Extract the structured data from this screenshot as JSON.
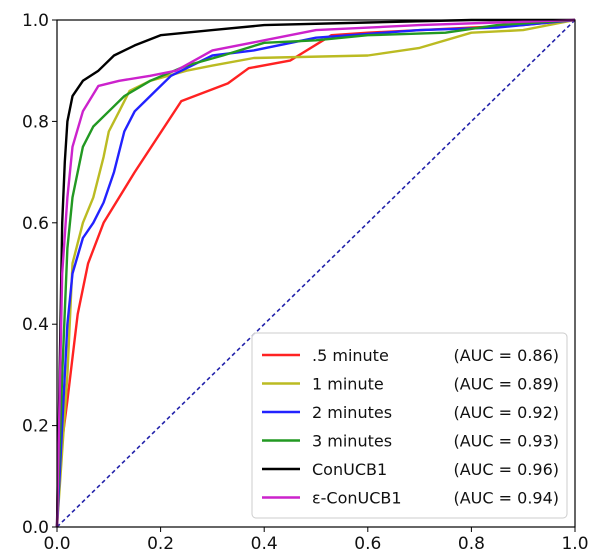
{
  "chart_data": {
    "type": "line",
    "title": "",
    "xlabel": "",
    "ylabel": "",
    "xlim": [
      0.0,
      1.0
    ],
    "ylim": [
      0.0,
      1.0
    ],
    "x_ticks": [
      "0.0",
      "0.2",
      "0.4",
      "0.6",
      "0.8",
      "1.0"
    ],
    "y_ticks": [
      "0.0",
      "0.2",
      "0.4",
      "0.6",
      "0.8",
      "1.0"
    ],
    "grid": false,
    "legend_position": "bottom-right",
    "series": [
      {
        "name": ".5 minute",
        "auc_label": "(AUC = 0.86)",
        "color": "#ff2222",
        "points": [
          [
            0,
            0
          ],
          [
            0.005,
            0.1
          ],
          [
            0.01,
            0.17
          ],
          [
            0.02,
            0.25
          ],
          [
            0.04,
            0.42
          ],
          [
            0.06,
            0.52
          ],
          [
            0.09,
            0.6
          ],
          [
            0.15,
            0.7
          ],
          [
            0.24,
            0.84
          ],
          [
            0.33,
            0.875
          ],
          [
            0.37,
            0.905
          ],
          [
            0.45,
            0.92
          ],
          [
            0.53,
            0.97
          ],
          [
            0.6,
            0.975
          ],
          [
            0.8,
            0.985
          ],
          [
            0.9,
            0.99
          ],
          [
            1,
            1
          ]
        ]
      },
      {
        "name": "1 minute",
        "auc_label": "(AUC = 0.89)",
        "color": "#bbbb22",
        "points": [
          [
            0,
            0
          ],
          [
            0.01,
            0.15
          ],
          [
            0.02,
            0.3
          ],
          [
            0.03,
            0.52
          ],
          [
            0.05,
            0.6
          ],
          [
            0.07,
            0.65
          ],
          [
            0.09,
            0.73
          ],
          [
            0.1,
            0.78
          ],
          [
            0.12,
            0.82
          ],
          [
            0.14,
            0.86
          ],
          [
            0.18,
            0.88
          ],
          [
            0.25,
            0.9
          ],
          [
            0.3,
            0.91
          ],
          [
            0.38,
            0.925
          ],
          [
            0.6,
            0.93
          ],
          [
            0.7,
            0.945
          ],
          [
            0.8,
            0.975
          ],
          [
            0.9,
            0.98
          ],
          [
            1,
            1
          ]
        ]
      },
      {
        "name": "2 minutes",
        "auc_label": "(AUC = 0.92)",
        "color": "#2222ff",
        "points": [
          [
            0,
            0
          ],
          [
            0.01,
            0.2
          ],
          [
            0.02,
            0.4
          ],
          [
            0.03,
            0.5
          ],
          [
            0.05,
            0.57
          ],
          [
            0.07,
            0.6
          ],
          [
            0.09,
            0.64
          ],
          [
            0.11,
            0.7
          ],
          [
            0.13,
            0.78
          ],
          [
            0.15,
            0.82
          ],
          [
            0.17,
            0.84
          ],
          [
            0.19,
            0.86
          ],
          [
            0.22,
            0.89
          ],
          [
            0.3,
            0.93
          ],
          [
            0.38,
            0.94
          ],
          [
            0.5,
            0.965
          ],
          [
            0.7,
            0.98
          ],
          [
            0.85,
            0.985
          ],
          [
            1,
            1
          ]
        ]
      },
      {
        "name": "3 minutes",
        "auc_label": "(AUC = 0.93)",
        "color": "#229922",
        "points": [
          [
            0,
            0
          ],
          [
            0.01,
            0.3
          ],
          [
            0.02,
            0.55
          ],
          [
            0.03,
            0.65
          ],
          [
            0.05,
            0.75
          ],
          [
            0.07,
            0.79
          ],
          [
            0.1,
            0.82
          ],
          [
            0.13,
            0.85
          ],
          [
            0.18,
            0.88
          ],
          [
            0.25,
            0.91
          ],
          [
            0.32,
            0.93
          ],
          [
            0.4,
            0.955
          ],
          [
            0.5,
            0.96
          ],
          [
            0.6,
            0.97
          ],
          [
            0.75,
            0.975
          ],
          [
            0.85,
            0.99
          ],
          [
            1,
            1
          ]
        ]
      },
      {
        "name": "ConUCB1",
        "auc_label": "(AUC = 0.96)",
        "color": "#000000",
        "points": [
          [
            0,
            0
          ],
          [
            0.005,
            0.3
          ],
          [
            0.01,
            0.6
          ],
          [
            0.015,
            0.72
          ],
          [
            0.02,
            0.8
          ],
          [
            0.03,
            0.85
          ],
          [
            0.05,
            0.88
          ],
          [
            0.08,
            0.9
          ],
          [
            0.11,
            0.93
          ],
          [
            0.15,
            0.95
          ],
          [
            0.2,
            0.97
          ],
          [
            0.3,
            0.98
          ],
          [
            0.4,
            0.99
          ],
          [
            0.6,
            0.995
          ],
          [
            0.8,
            1
          ],
          [
            1,
            1
          ]
        ]
      },
      {
        "name": "ε-ConUCB1",
        "auc_label": "(AUC = 0.94)",
        "color": "#cc22cc",
        "points": [
          [
            0,
            0
          ],
          [
            0.005,
            0.25
          ],
          [
            0.01,
            0.5
          ],
          [
            0.02,
            0.65
          ],
          [
            0.03,
            0.75
          ],
          [
            0.05,
            0.82
          ],
          [
            0.08,
            0.87
          ],
          [
            0.12,
            0.88
          ],
          [
            0.18,
            0.89
          ],
          [
            0.23,
            0.9
          ],
          [
            0.3,
            0.94
          ],
          [
            0.4,
            0.96
          ],
          [
            0.5,
            0.98
          ],
          [
            0.7,
            0.99
          ],
          [
            0.85,
            0.995
          ],
          [
            1,
            1
          ]
        ]
      }
    ],
    "reference_line": {
      "points": [
        [
          0,
          0
        ],
        [
          1,
          1
        ]
      ],
      "color": "#2222aa",
      "style": "dashed"
    }
  }
}
